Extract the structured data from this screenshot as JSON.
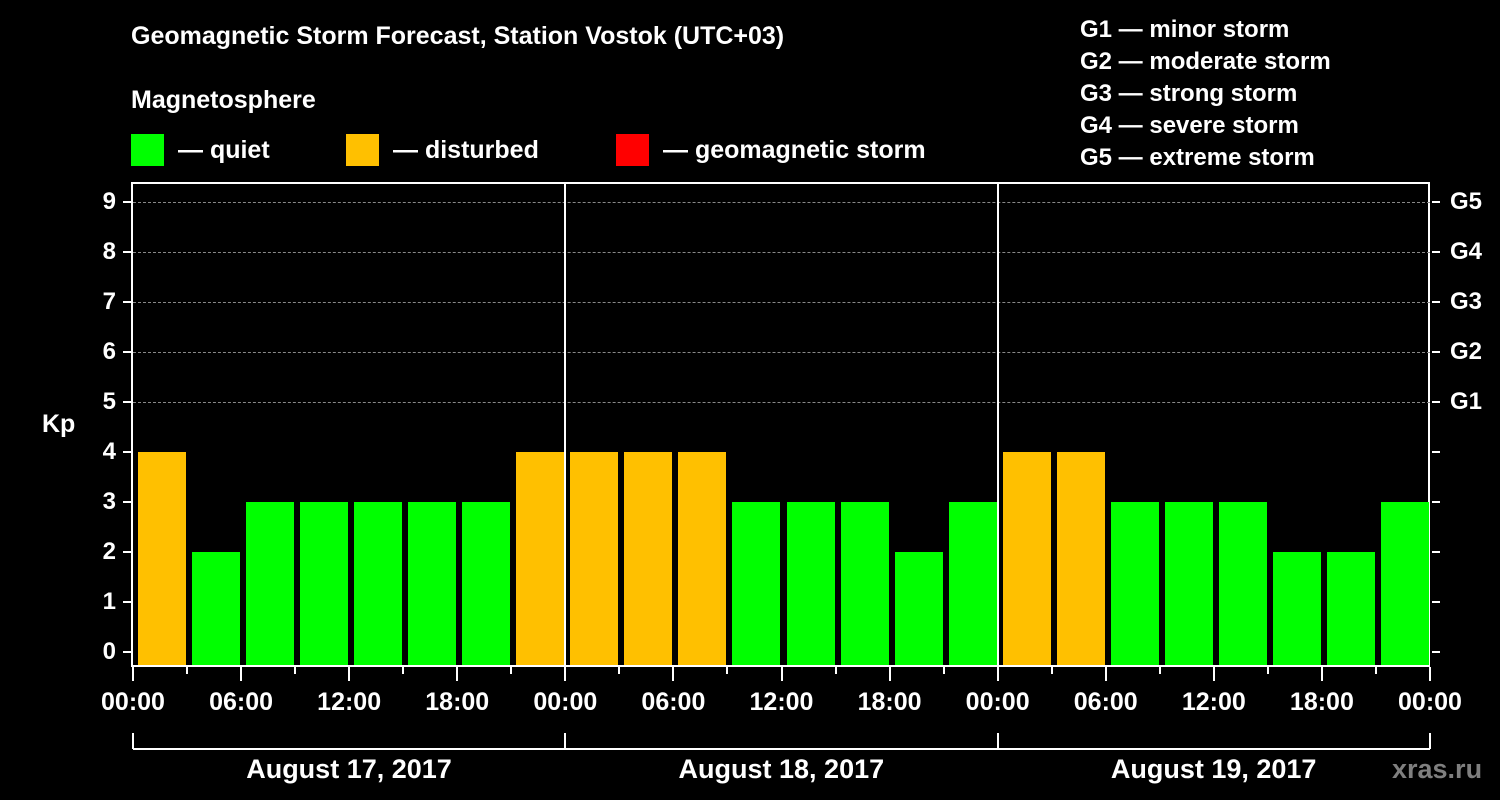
{
  "header": {
    "title": "Geomagnetic Storm Forecast, Station Vostok (UTC+03)",
    "subtitle": "Magnetosphere"
  },
  "legend": {
    "quiet": {
      "label": "— quiet",
      "color": "#00ff00"
    },
    "disturbed": {
      "label": "— disturbed",
      "color": "#ffc000"
    },
    "storm": {
      "label": "— geomagnetic storm",
      "color": "#ff0000"
    }
  },
  "g_scale": [
    "G1 — minor storm",
    "G2 — moderate storm",
    "G3 — strong storm",
    "G4 — severe storm",
    "G5 — extreme storm"
  ],
  "axis": {
    "ylabel": "Kp",
    "yticks": [
      "0",
      "1",
      "2",
      "3",
      "4",
      "5",
      "6",
      "7",
      "8",
      "9"
    ],
    "right_labels": [
      "G1",
      "G2",
      "G3",
      "G4",
      "G5"
    ],
    "xticks": [
      "00:00",
      "06:00",
      "12:00",
      "18:00",
      "00:00",
      "06:00",
      "12:00",
      "18:00",
      "00:00",
      "06:00",
      "12:00",
      "18:00",
      "00:00"
    ],
    "days": [
      "August 17, 2017",
      "August 18, 2017",
      "August 19, 2017"
    ]
  },
  "watermark": "xras.ru",
  "chart_data": {
    "type": "bar",
    "title": "Geomagnetic Storm Forecast, Station Vostok (UTC+03)",
    "xlabel": "",
    "ylabel": "Kp",
    "ylim": [
      0,
      9
    ],
    "grid": true,
    "categories": [
      "Aug 17 00-03",
      "Aug 17 03-06",
      "Aug 17 06-09",
      "Aug 17 09-12",
      "Aug 17 12-15",
      "Aug 17 15-18",
      "Aug 17 18-21",
      "Aug 17 21-24",
      "Aug 18 00-03",
      "Aug 18 03-06",
      "Aug 18 06-09",
      "Aug 18 09-12",
      "Aug 18 12-15",
      "Aug 18 15-18",
      "Aug 18 18-21",
      "Aug 18 21-24",
      "Aug 19 00-03",
      "Aug 19 03-06",
      "Aug 19 06-09",
      "Aug 19 09-12",
      "Aug 19 12-15",
      "Aug 19 15-18",
      "Aug 19 18-21",
      "Aug 19 21-24"
    ],
    "values": [
      4,
      2,
      3,
      3,
      3,
      3,
      3,
      4,
      4,
      4,
      4,
      3,
      3,
      3,
      2,
      3,
      4,
      4,
      3,
      3,
      3,
      2,
      2,
      3
    ],
    "legend": [
      "quiet (Kp<4)",
      "disturbed (Kp=4)",
      "geomagnetic storm (Kp>=5)"
    ],
    "right_axis": {
      "5": "G1",
      "6": "G2",
      "7": "G3",
      "8": "G4",
      "9": "G5"
    }
  }
}
